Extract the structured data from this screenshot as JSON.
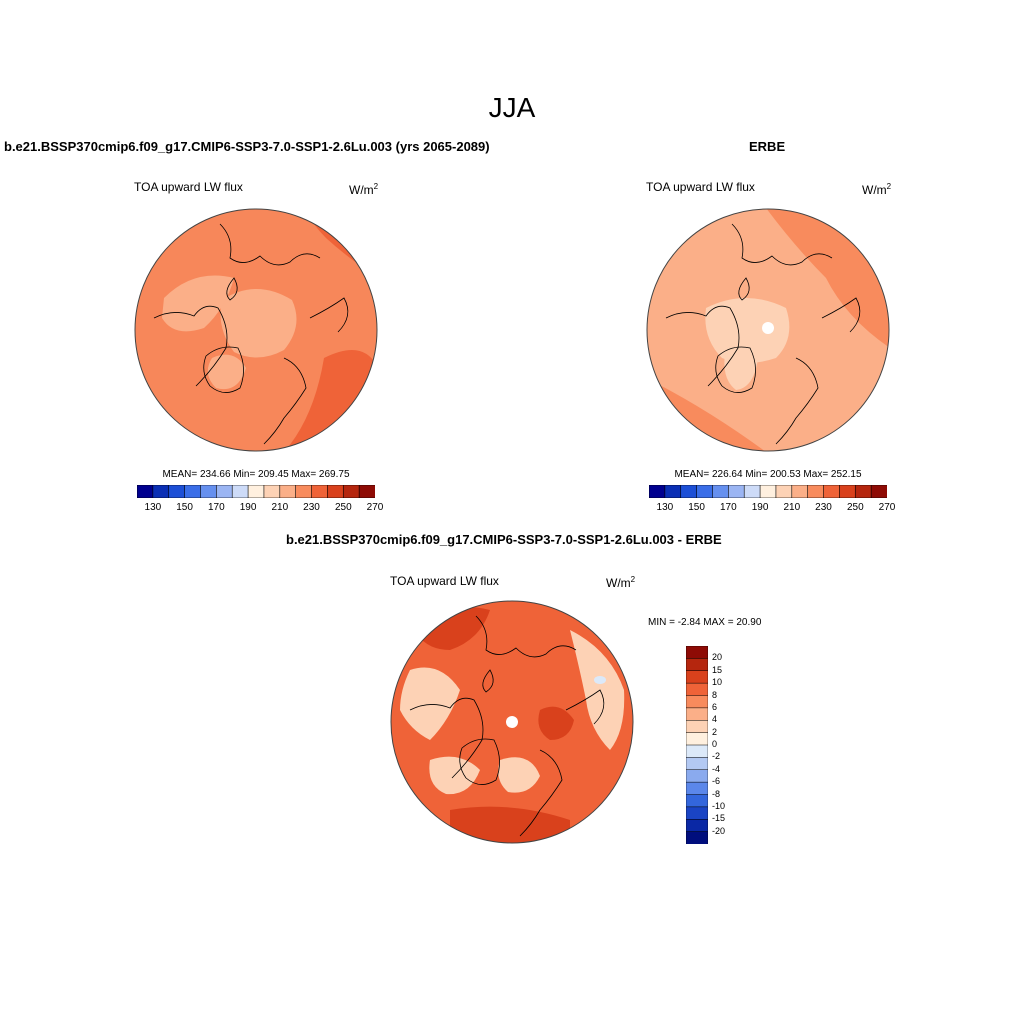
{
  "figure": {
    "title": "JJA"
  },
  "panels": {
    "model": {
      "title": "b.e21.BSSP370cmip6.f09_g17.CMIP6-SSP3-7.0-SSP1-2.6Lu.003 (yrs 2065-2089)",
      "variable": "TOA upward LW flux",
      "units_base": "W/m",
      "units_exp": "2",
      "stats": "MEAN= 234.66  Min= 209.45  Max= 269.75"
    },
    "obs": {
      "title": "ERBE",
      "variable": "TOA upward LW flux",
      "units_base": "W/m",
      "units_exp": "2",
      "stats": "MEAN= 226.64  Min= 200.53  Max= 252.15"
    },
    "diff": {
      "title": "b.e21.BSSP370cmip6.f09_g17.CMIP6-SSP3-7.0-SSP1-2.6Lu.003 - ERBE",
      "variable": "TOA upward LW flux",
      "units_base": "W/m",
      "units_exp": "2",
      "stats": "MIN =  -2.84 MAX =  20.90"
    }
  },
  "colorbar_abs": {
    "colors": [
      "#00008f",
      "#0a2fb5",
      "#1c4fd6",
      "#3a6ee8",
      "#6690ef",
      "#9bb5f3",
      "#cddbf8",
      "#fff0df",
      "#fdd2b5",
      "#fbaf88",
      "#f88b5d",
      "#ef6338",
      "#d9411c",
      "#b5260e",
      "#8e0b05"
    ],
    "labels": [
      "130",
      "150",
      "170",
      "190",
      "210",
      "230",
      "250",
      "270"
    ]
  },
  "colorbar_diff": {
    "colors": [
      "#8e0b05",
      "#b5260e",
      "#d9411c",
      "#ef6338",
      "#f88b5d",
      "#fbaf88",
      "#fdd2b5",
      "#fff0df",
      "#dce9f9",
      "#b3c9f3",
      "#8aaaee",
      "#5b87ea",
      "#3366dc",
      "#1a44c4",
      "#0a28a5",
      "#000e7d"
    ],
    "labels": [
      "20",
      "15",
      "10",
      "8",
      "6",
      "4",
      "2",
      "0",
      "-2",
      "-4",
      "-6",
      "-8",
      "-10",
      "-15",
      "-20"
    ]
  },
  "map_colors": {
    "model_base": "#f7875a",
    "model_light": "#fbaf88",
    "model_dark": "#ef6338",
    "obs_base": "#fbaf88",
    "obs_light": "#fdd2b5",
    "obs_dark": "#f88b5d",
    "diff_base": "#ef6338",
    "diff_light": "#fdd2b5",
    "diff_dark": "#d9411c"
  }
}
